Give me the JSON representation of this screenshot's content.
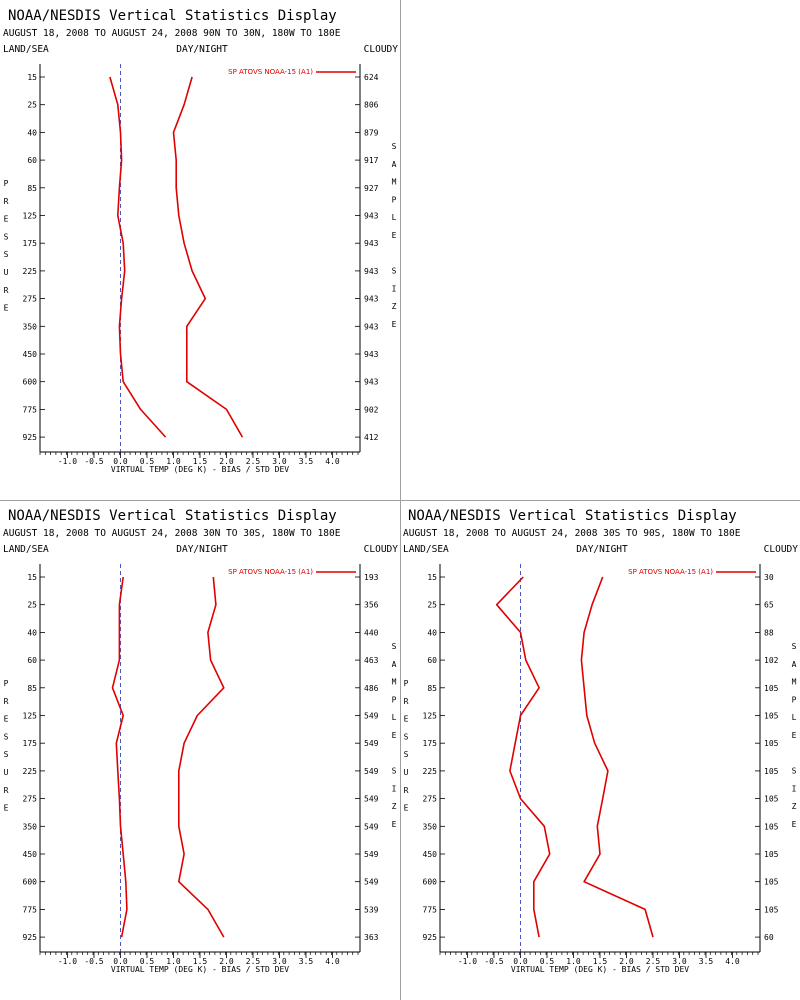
{
  "chart_data": [
    {
      "type": "line",
      "title": "NOAA/NESDIS Vertical Statistics Display",
      "subtitle": "AUGUST 18, 2008 TO AUGUST 24, 2008 90N TO 30N, 180W TO 180E",
      "top_labels": {
        "left": "LAND/SEA",
        "center": "DAY/NIGHT",
        "right": "CLOUDY"
      },
      "xlabel": "VIRTUAL TEMP (DEG K) - BIAS / STD DEV",
      "ylabel": "PRESSURE",
      "y2label": "SAMPLE SIZE",
      "x_ticks": [
        "-1.0",
        "-0.5",
        "0.0",
        "0.5",
        "1.0",
        "1.5",
        "2.0",
        "2.5",
        "3.0",
        "3.5",
        "4.0"
      ],
      "pressure_levels": [
        15,
        25,
        40,
        60,
        85,
        125,
        175,
        225,
        275,
        350,
        450,
        600,
        775,
        925
      ],
      "sample_size": [
        "624",
        "806",
        "879",
        "917",
        "927",
        "943",
        "943",
        "943",
        "943",
        "943",
        "943",
        "943",
        "902",
        "412"
      ],
      "legend": "SP ATOVS NOAA-15 (A1)",
      "colors": {
        "series": "#e00000",
        "zero_line": "#1f2fb5"
      },
      "series": [
        {
          "role": "bias",
          "values": [
            -0.2,
            -0.05,
            0.0,
            0.02,
            -0.02,
            -0.05,
            0.05,
            0.08,
            0.02,
            -0.02,
            0.0,
            0.05,
            0.38,
            0.85
          ]
        },
        {
          "role": "std_dev",
          "values": [
            1.35,
            1.2,
            1.0,
            1.05,
            1.05,
            1.1,
            1.2,
            1.35,
            1.6,
            1.25,
            1.25,
            1.25,
            2.0,
            2.3
          ]
        }
      ]
    },
    {
      "type": "line",
      "title": "NOAA/NESDIS Vertical Statistics Display",
      "subtitle": "AUGUST 18, 2008 TO AUGUST 24, 2008 30N TO 30S, 180W TO 180E",
      "top_labels": {
        "left": "LAND/SEA",
        "center": "DAY/NIGHT",
        "right": "CLOUDY"
      },
      "xlabel": "VIRTUAL TEMP (DEG K) - BIAS / STD DEV",
      "ylabel": "PRESSURE",
      "y2label": "SAMPLE SIZE",
      "x_ticks": [
        "-1.0",
        "-0.5",
        "0.0",
        "0.5",
        "1.0",
        "1.5",
        "2.0",
        "2.5",
        "3.0",
        "3.5",
        "4.0"
      ],
      "pressure_levels": [
        15,
        25,
        40,
        60,
        85,
        125,
        175,
        225,
        275,
        350,
        450,
        600,
        775,
        925
      ],
      "sample_size": [
        "193",
        "356",
        "440",
        "463",
        "486",
        "549",
        "549",
        "549",
        "549",
        "549",
        "549",
        "549",
        "539",
        "363"
      ],
      "legend": "SP ATOVS NOAA-15 (A1)",
      "colors": {
        "series": "#e00000",
        "zero_line": "#1f2fb5"
      },
      "series": [
        {
          "role": "bias",
          "values": [
            0.05,
            -0.02,
            -0.02,
            -0.02,
            -0.15,
            0.05,
            -0.08,
            -0.05,
            -0.02,
            0.0,
            0.05,
            0.1,
            0.12,
            0.02
          ]
        },
        {
          "role": "std_dev",
          "values": [
            1.75,
            1.8,
            1.65,
            1.7,
            1.95,
            1.45,
            1.2,
            1.1,
            1.1,
            1.1,
            1.2,
            1.1,
            1.65,
            1.95
          ]
        }
      ]
    },
    {
      "type": "line",
      "title": "NOAA/NESDIS Vertical Statistics Display",
      "subtitle": "AUGUST 18, 2008 TO AUGUST 24, 2008 30S TO 90S, 180W TO 180E",
      "top_labels": {
        "left": "LAND/SEA",
        "center": "DAY/NIGHT",
        "right": "CLOUDY"
      },
      "xlabel": "VIRTUAL TEMP (DEG K) - BIAS / STD DEV",
      "ylabel": "PRESSURE",
      "y2label": "SAMPLE SIZE",
      "x_ticks": [
        "-1.0",
        "-0.5",
        "0.0",
        "0.5",
        "1.0",
        "1.5",
        "2.0",
        "2.5",
        "3.0",
        "3.5",
        "4.0"
      ],
      "pressure_levels": [
        15,
        25,
        40,
        60,
        85,
        125,
        175,
        225,
        275,
        350,
        450,
        600,
        775,
        925
      ],
      "sample_size": [
        "30",
        "65",
        "88",
        "102",
        "105",
        "105",
        "105",
        "105",
        "105",
        "105",
        "105",
        "105",
        "105",
        "60"
      ],
      "legend": "SP ATOVS NOAA-15 (A1)",
      "colors": {
        "series": "#e00000",
        "zero_line": "#1f2fb5"
      },
      "series": [
        {
          "role": "bias",
          "values": [
            0.05,
            -0.45,
            0.0,
            0.1,
            0.35,
            0.0,
            -0.1,
            -0.2,
            0.0,
            0.45,
            0.55,
            0.25,
            0.25,
            0.35
          ]
        },
        {
          "role": "std_dev",
          "values": [
            1.55,
            1.35,
            1.2,
            1.15,
            1.2,
            1.25,
            1.4,
            1.65,
            1.55,
            1.45,
            1.5,
            1.2,
            2.35,
            2.5
          ]
        }
      ]
    }
  ]
}
